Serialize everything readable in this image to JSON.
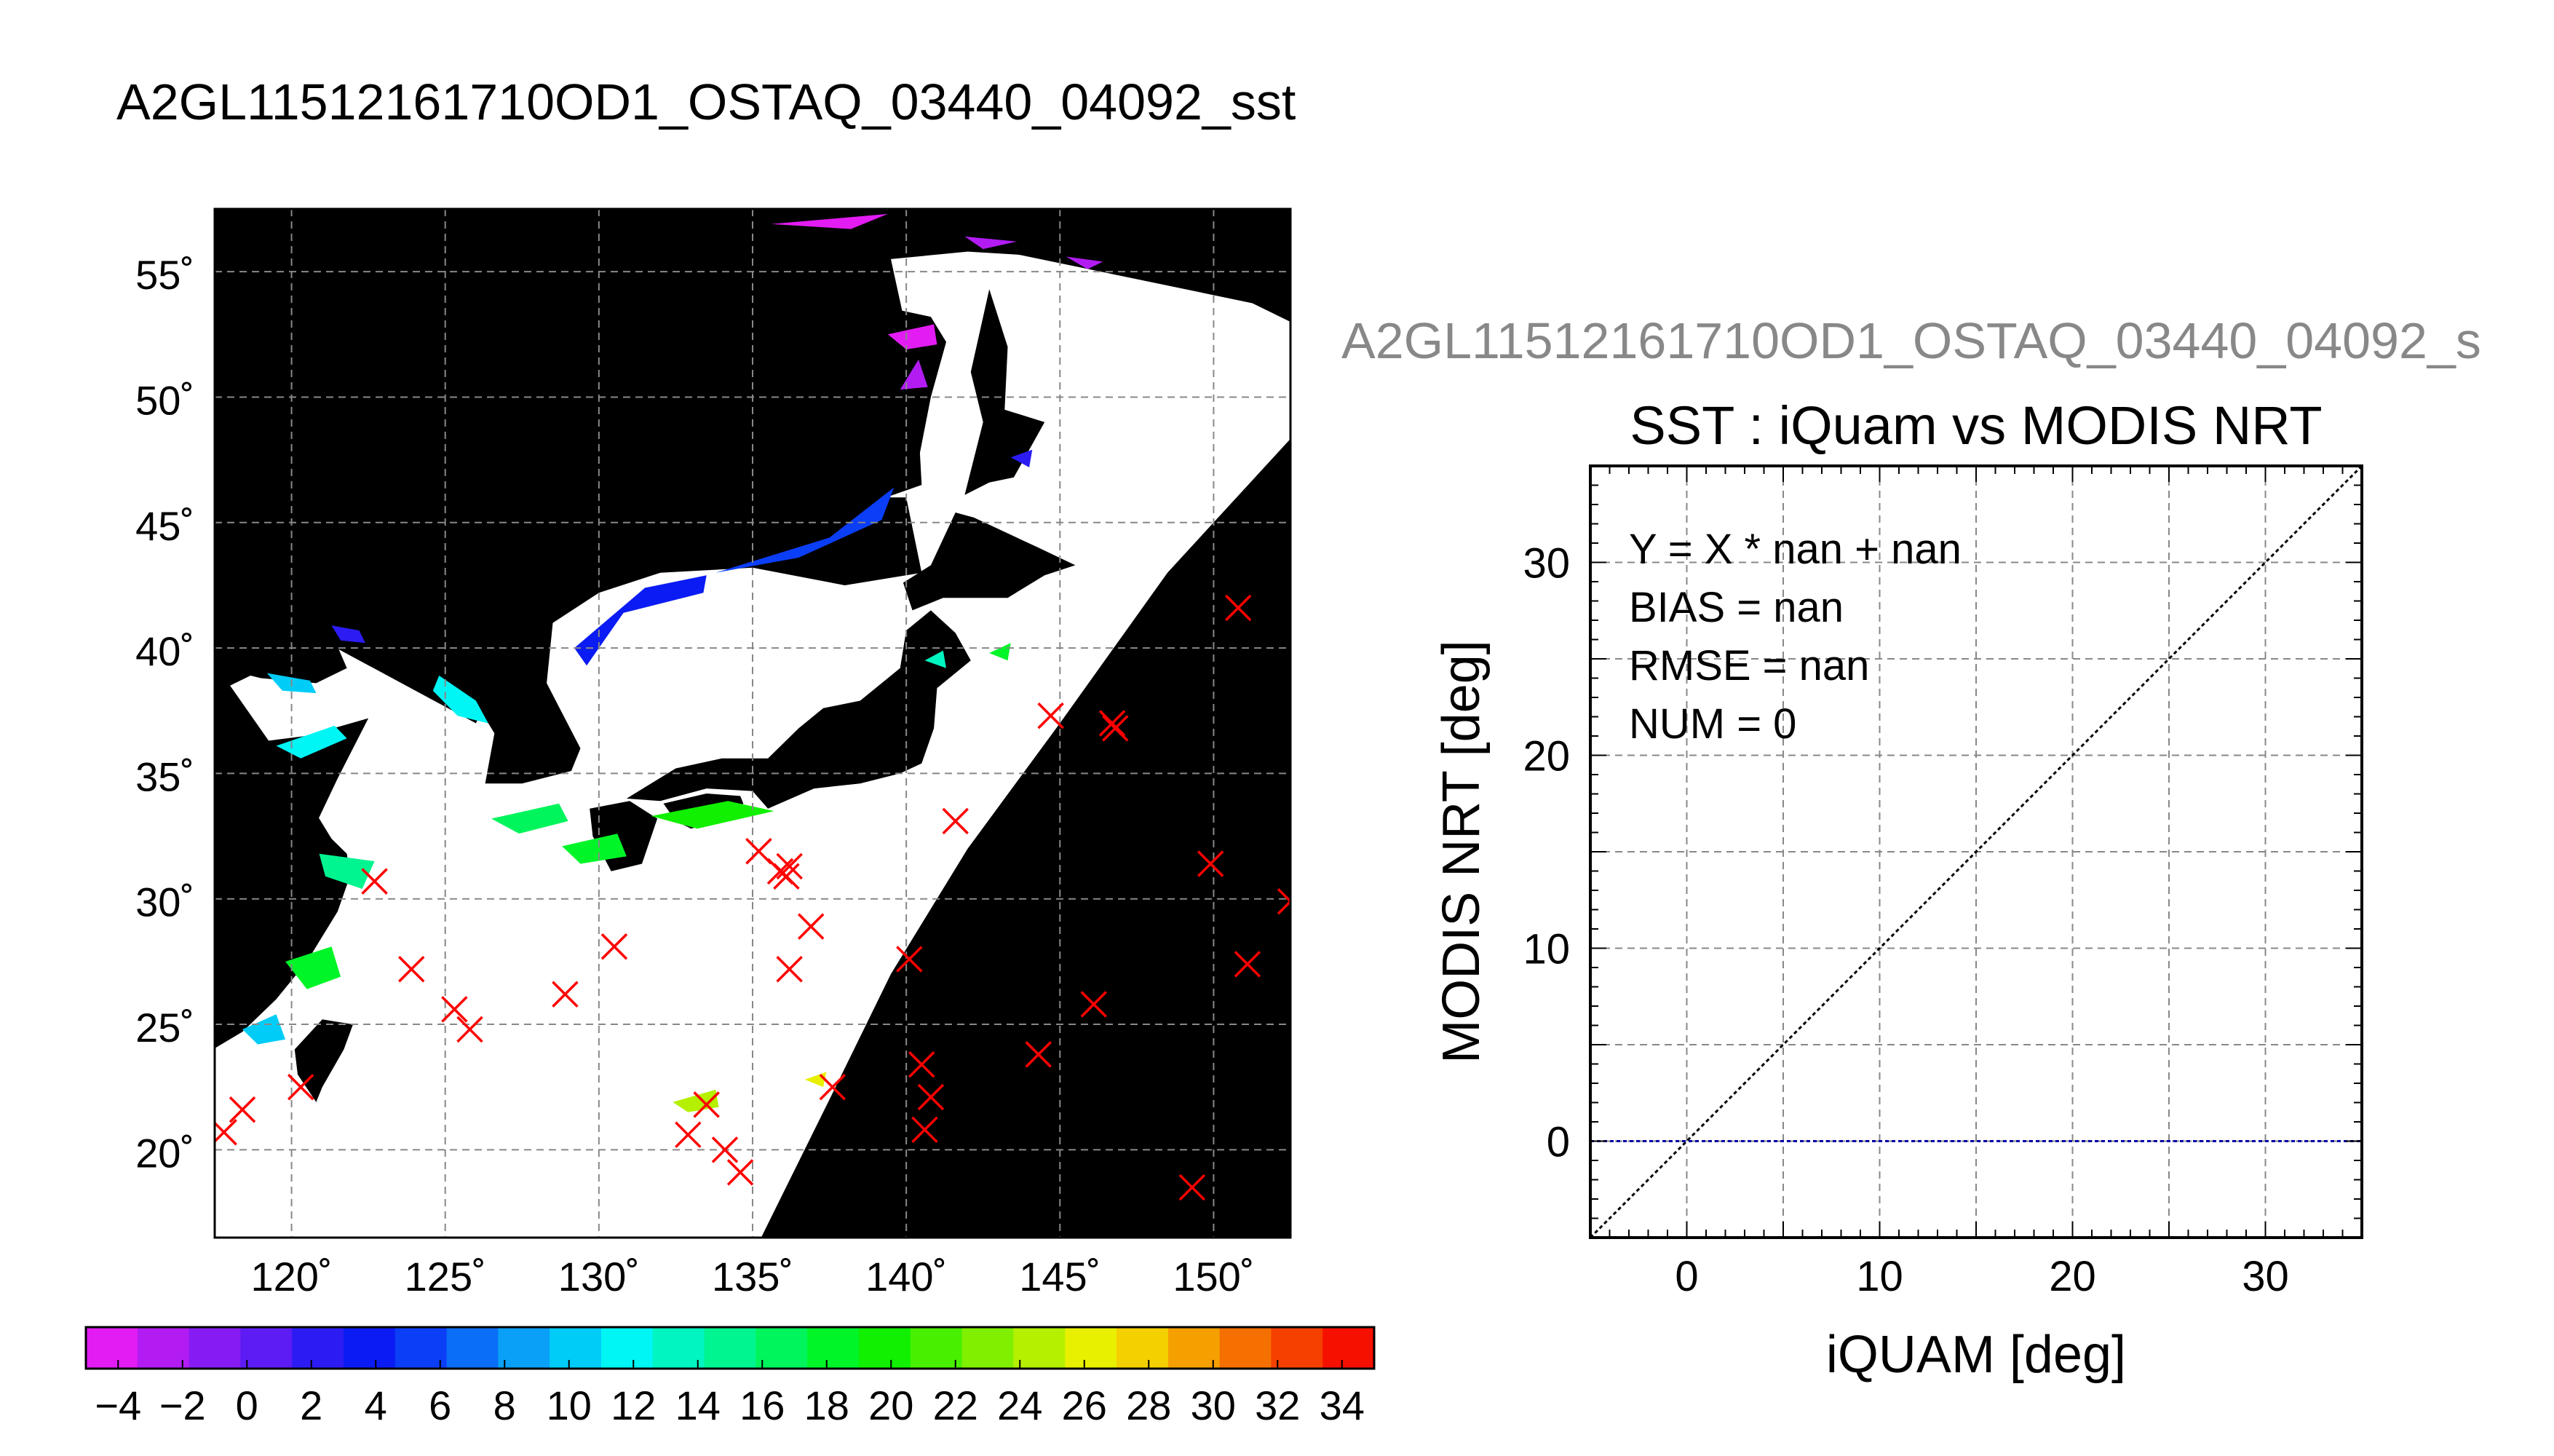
{
  "main_title": "A2GL11512161710OD1_OSTAQ_03440_04092_sst",
  "map": {
    "lat_labels": [
      "55˚",
      "50˚",
      "45˚",
      "40˚",
      "35˚",
      "30˚",
      "25˚",
      "20˚"
    ],
    "lon_labels": [
      "120˚",
      "125˚",
      "130˚",
      "135˚",
      "140˚",
      "145˚",
      "150˚"
    ],
    "colorbar_ticks": [
      "−4",
      "−2",
      "0",
      "2",
      "4",
      "6",
      "8",
      "10",
      "12",
      "14",
      "16",
      "18",
      "20",
      "22",
      "24",
      "26",
      "28",
      "30",
      "32",
      "34"
    ],
    "colors": {
      "land": "#000000",
      "cloud_or_nodata": "#ffffff",
      "marker": "#ff0000",
      "colorbar": [
        "#e21cf3",
        "#b21cf3",
        "#861cf3",
        "#5c1cf3",
        "#2c1cf3",
        "#0a1cf3",
        "#0b3ef7",
        "#0a6ef7",
        "#0aa0f7",
        "#00cdf7",
        "#00f5f5",
        "#00f5c0",
        "#00f590",
        "#00f55c",
        "#00f528",
        "#10f000",
        "#48f000",
        "#80f000",
        "#b4f000",
        "#e8f000",
        "#f5d000",
        "#f5a000",
        "#f57000",
        "#f54000",
        "#f51000"
      ]
    }
  },
  "scatter_panel": {
    "subtitle": "A2GL11512161710OD1_OSTAQ_03440_04092_s",
    "stats": [
      "Y = X * nan + nan",
      "BIAS = nan",
      "RMSE = nan",
      "NUM = 0"
    ]
  },
  "chart_data": [
    {
      "type": "map",
      "xlim": [
        117.5,
        152.5
      ],
      "ylim": [
        16.5,
        57.5
      ],
      "lat_ticks": [
        55,
        50,
        45,
        40,
        35,
        30,
        25,
        20
      ],
      "lon_ticks": [
        120,
        125,
        130,
        135,
        140,
        145,
        150
      ],
      "grid": true,
      "colorbar": {
        "min": -5,
        "max": 35,
        "ticks": [
          -4,
          -2,
          0,
          2,
          4,
          6,
          8,
          10,
          12,
          14,
          16,
          18,
          20,
          22,
          24,
          26,
          28,
          30,
          32,
          34
        ]
      },
      "series": [
        {
          "marker": "x",
          "points": [
            [
              117.8,
              20.7
            ],
            [
              118.4,
              21.6
            ],
            [
              120.3,
              22.5
            ],
            [
              122.7,
              30.7
            ],
            [
              123.9,
              27.2
            ],
            [
              125.3,
              25.6
            ],
            [
              125.8,
              24.8
            ],
            [
              128.9,
              26.2
            ],
            [
              130.5,
              28.1
            ],
            [
              132.9,
              20.6
            ],
            [
              133.5,
              21.8
            ],
            [
              134.1,
              20.0
            ],
            [
              134.6,
              19.1
            ],
            [
              135.2,
              31.9
            ],
            [
              135.9,
              31.1
            ],
            [
              136.1,
              30.9
            ],
            [
              136.2,
              31.3
            ],
            [
              136.2,
              27.2
            ],
            [
              136.9,
              28.9
            ],
            [
              137.6,
              22.5
            ],
            [
              140.1,
              27.6
            ],
            [
              140.5,
              23.4
            ],
            [
              140.6,
              20.8
            ],
            [
              140.8,
              22.1
            ],
            [
              141.6,
              33.1
            ],
            [
              144.3,
              23.8
            ],
            [
              144.7,
              37.3
            ],
            [
              146.1,
              25.8
            ],
            [
              146.7,
              37.0
            ],
            [
              146.8,
              36.8
            ],
            [
              149.3,
              18.5
            ],
            [
              149.9,
              31.4
            ],
            [
              150.8,
              41.6
            ],
            [
              151.1,
              27.4
            ],
            [
              152.5,
              29.9
            ]
          ]
        }
      ]
    },
    {
      "type": "scatter",
      "title": "SST : iQuam vs MODIS NRT",
      "xlabel": "iQUAM [deg]",
      "ylabel": "MODIS NRT [deg]",
      "xlim": [
        -5,
        35
      ],
      "ylim": [
        -5,
        35
      ],
      "xticks": [
        0,
        10,
        20,
        30
      ],
      "yticks": [
        0,
        10,
        20,
        30
      ],
      "grid": true,
      "series": [
        {
          "kind": "line",
          "style": "dotted",
          "color": "#000000",
          "x": [
            -5,
            35
          ],
          "y": [
            -5,
            35
          ]
        },
        {
          "kind": "line",
          "style": "dotted",
          "color": "#0000aa",
          "x": [
            -5,
            35
          ],
          "y": [
            0,
            0
          ]
        }
      ],
      "points": []
    }
  ]
}
